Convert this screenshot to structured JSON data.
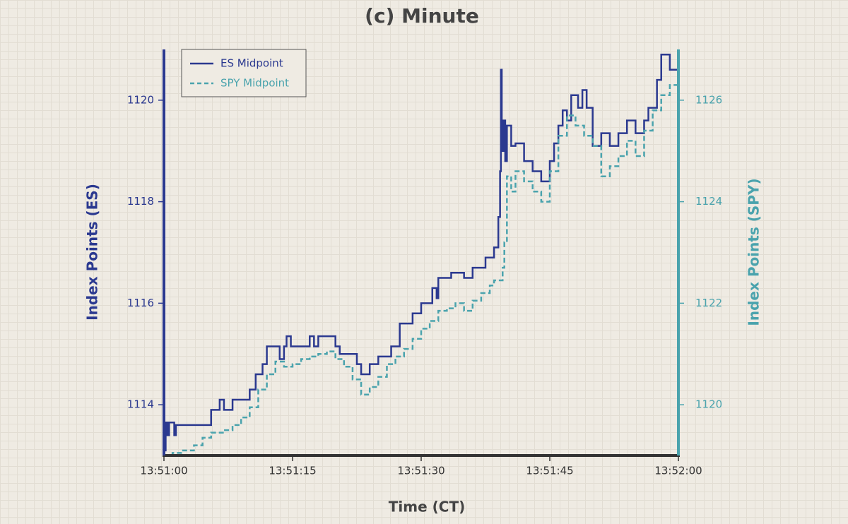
{
  "chart_data": {
    "type": "line",
    "title": "(c) Minute",
    "xlabel": "Time (CT)",
    "ylabel": "Index Points (ES)",
    "y2label": "Index Points (SPY)",
    "drawstyle": "steps-post",
    "legend": "upper left",
    "xlim": [
      0,
      60
    ],
    "xticks": [
      {
        "value": 0,
        "label": "13:51:00"
      },
      {
        "value": 15,
        "label": "13:51:15"
      },
      {
        "value": 30,
        "label": "13:51:30"
      },
      {
        "value": 45,
        "label": "13:51:45"
      },
      {
        "value": 60,
        "label": "13:52:00"
      }
    ],
    "ylim": [
      1113,
      1121
    ],
    "yticks": [
      1114,
      1116,
      1118,
      1120
    ],
    "y2lim": [
      1119,
      1127
    ],
    "y2ticks": [
      1120,
      1122,
      1124,
      1126
    ],
    "series": [
      {
        "name": "ES Midpoint",
        "color": "#2b3990",
        "linestyle": "solid",
        "x": [
          0,
          0.2,
          0.4,
          0.6,
          1.2,
          1.4,
          5.5,
          6.5,
          7,
          8,
          10,
          10.7,
          11.5,
          12,
          13.5,
          14,
          14.3,
          14.8,
          16,
          17,
          17.5,
          18,
          20,
          20.5,
          22.5,
          23,
          24,
          25,
          26.5,
          27.5,
          29,
          30,
          31.3,
          31.8,
          32,
          33.5,
          35,
          36,
          37.5,
          38.5,
          39,
          39.2,
          39.3,
          39.4,
          39.6,
          39.8,
          40,
          40.5,
          41,
          42,
          43,
          44,
          45,
          45.5,
          46,
          46.5,
          47,
          47.5,
          48.3,
          48.8,
          49.3,
          50,
          51,
          52,
          53,
          54,
          55,
          56,
          56.5,
          57.5,
          58,
          59,
          60
        ],
        "values": [
          1113.1,
          1113.65,
          1113.4,
          1113.65,
          1113.4,
          1113.6,
          1113.9,
          1114.1,
          1113.9,
          1114.1,
          1114.3,
          1114.6,
          1114.8,
          1115.15,
          1114.9,
          1115.15,
          1115.35,
          1115.15,
          1115.15,
          1115.35,
          1115.15,
          1115.35,
          1115.15,
          1115.0,
          1114.8,
          1114.6,
          1114.8,
          1114.95,
          1115.15,
          1115.6,
          1115.8,
          1116.0,
          1116.3,
          1116.1,
          1116.5,
          1116.6,
          1116.5,
          1116.7,
          1116.9,
          1117.1,
          1117.7,
          1118.6,
          1120.6,
          1119.0,
          1119.6,
          1118.8,
          1119.5,
          1119.1,
          1119.15,
          1118.8,
          1118.6,
          1118.4,
          1118.8,
          1119.15,
          1119.5,
          1119.8,
          1119.6,
          1120.1,
          1119.85,
          1120.2,
          1119.85,
          1119.1,
          1119.35,
          1119.1,
          1119.35,
          1119.6,
          1119.35,
          1119.6,
          1119.85,
          1120.4,
          1120.9,
          1120.6,
          1120.4
        ]
      },
      {
        "name": "SPY Midpoint",
        "color": "#4aa3ad",
        "linestyle": "dashed",
        "axis": "y2",
        "x": [
          0,
          1,
          2,
          3.5,
          4.5,
          5.5,
          7,
          8,
          9,
          10,
          11,
          12,
          13,
          14,
          15,
          16,
          17,
          18,
          19,
          20,
          21,
          22,
          23,
          24,
          25,
          26,
          27,
          28,
          29,
          30,
          31,
          32,
          33,
          34,
          35,
          36,
          37,
          38,
          38.5,
          39.5,
          39.7,
          40,
          40.5,
          41,
          42,
          43,
          44,
          45,
          46,
          47,
          48,
          49,
          50,
          51,
          52,
          53,
          54,
          55,
          56,
          57,
          58,
          59,
          60
        ],
        "values": [
          1119.0,
          1119.05,
          1119.1,
          1119.2,
          1119.35,
          1119.45,
          1119.5,
          1119.6,
          1119.75,
          1119.95,
          1120.3,
          1120.6,
          1120.85,
          1120.75,
          1120.8,
          1120.9,
          1120.95,
          1121.0,
          1121.05,
          1120.9,
          1120.75,
          1120.5,
          1120.2,
          1120.35,
          1120.55,
          1120.8,
          1120.95,
          1121.1,
          1121.3,
          1121.5,
          1121.65,
          1121.85,
          1121.9,
          1122.0,
          1121.85,
          1122.05,
          1122.2,
          1122.35,
          1122.45,
          1122.7,
          1123.2,
          1124.5,
          1124.2,
          1124.6,
          1124.4,
          1124.2,
          1124.0,
          1124.6,
          1125.3,
          1125.7,
          1125.5,
          1125.3,
          1125.1,
          1124.5,
          1124.7,
          1124.9,
          1125.2,
          1124.9,
          1125.4,
          1125.8,
          1126.1,
          1126.3,
          1126.0
        ]
      }
    ]
  }
}
